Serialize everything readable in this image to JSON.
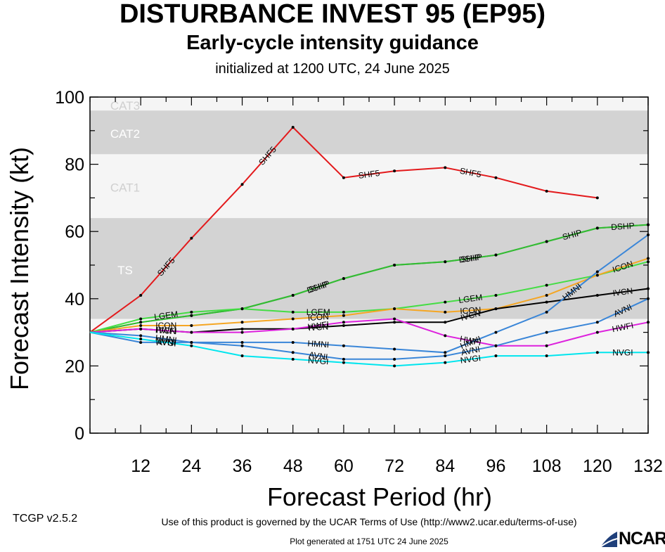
{
  "titles": {
    "main": "DISTURBANCE INVEST 95 (EP95)",
    "sub": "Early-cycle intensity guidance",
    "init": "initialized at 1200 UTC, 24 June 2025"
  },
  "footer": {
    "version": "TCGP v2.5.2",
    "terms": "Use of this product is governed by the UCAR Terms of Use (http://www2.ucar.edu/terms-of-use)",
    "generated": "Plot generated at 1751 UTC   24 June 2025",
    "logo": "NCAR"
  },
  "chart_data": {
    "type": "line",
    "xlabel": "Forecast Period (hr)",
    "ylabel": "Forecast Intensity (kt)",
    "xlim": [
      0,
      132
    ],
    "ylim": [
      0,
      100
    ],
    "xticks": [
      12,
      24,
      36,
      48,
      60,
      72,
      84,
      96,
      108,
      120,
      132
    ],
    "yticks": [
      0,
      20,
      40,
      60,
      80,
      100
    ],
    "bands": [
      {
        "label": "TS",
        "from": 34,
        "to": 64,
        "color": "#d3d3d3"
      },
      {
        "label": "CAT1",
        "from": 64,
        "to": 83,
        "color": "#f5f5f5"
      },
      {
        "label": "CAT2",
        "from": 83,
        "to": 96,
        "color": "#d3d3d3"
      },
      {
        "label": "CAT3",
        "from": 96,
        "to": 100,
        "color": "#f5f5f5"
      }
    ],
    "series": [
      {
        "name": "SHF5",
        "color": "#e31a1c",
        "labelAt": [
          24,
          48,
          72,
          96
        ],
        "points": [
          [
            0,
            30
          ],
          [
            12,
            41
          ],
          [
            24,
            58
          ],
          [
            36,
            74
          ],
          [
            48,
            91
          ],
          [
            60,
            76
          ],
          [
            72,
            78
          ],
          [
            84,
            79
          ],
          [
            96,
            76
          ],
          [
            108,
            72
          ],
          [
            120,
            70
          ]
        ]
      },
      {
        "name": "SHIP",
        "color": "#33bb33",
        "labelAt": [
          60,
          96,
          120
        ],
        "points": [
          [
            0,
            30
          ],
          [
            12,
            33
          ],
          [
            24,
            35
          ],
          [
            36,
            37
          ],
          [
            48,
            41
          ],
          [
            60,
            46
          ],
          [
            72,
            50
          ],
          [
            84,
            51
          ],
          [
            96,
            53
          ],
          [
            108,
            57
          ],
          [
            120,
            61
          ],
          [
            132,
            62
          ]
        ]
      },
      {
        "name": "DSHP",
        "color": "#33bb33",
        "labelAt": [
          60,
          96,
          132
        ],
        "points": [
          [
            0,
            30
          ],
          [
            12,
            33
          ],
          [
            24,
            35
          ],
          [
            36,
            37
          ],
          [
            48,
            41
          ],
          [
            60,
            46
          ],
          [
            72,
            50
          ],
          [
            84,
            51
          ],
          [
            96,
            53
          ],
          [
            108,
            57
          ],
          [
            120,
            61
          ],
          [
            132,
            62
          ]
        ]
      },
      {
        "name": "LGEM",
        "color": "#44dd44",
        "labelAt": [
          24,
          60,
          96
        ],
        "points": [
          [
            0,
            30
          ],
          [
            12,
            34
          ],
          [
            24,
            36
          ],
          [
            36,
            37
          ],
          [
            48,
            36
          ],
          [
            60,
            36
          ],
          [
            72,
            37
          ],
          [
            84,
            39
          ],
          [
            96,
            41
          ],
          [
            108,
            44
          ],
          [
            120,
            47
          ],
          [
            132,
            51
          ]
        ]
      },
      {
        "name": "ICON",
        "color": "#f5a623",
        "labelAt": [
          24,
          60,
          96,
          132
        ],
        "points": [
          [
            0,
            30
          ],
          [
            12,
            32
          ],
          [
            24,
            32
          ],
          [
            36,
            33
          ],
          [
            48,
            34
          ],
          [
            60,
            35
          ],
          [
            72,
            37
          ],
          [
            84,
            36
          ],
          [
            96,
            37
          ],
          [
            108,
            41
          ],
          [
            120,
            47
          ],
          [
            132,
            52
          ]
        ]
      },
      {
        "name": "IVCN",
        "color": "#000000",
        "labelAt": [
          24,
          60,
          96,
          132
        ],
        "points": [
          [
            0,
            30
          ],
          [
            12,
            31
          ],
          [
            24,
            30
          ],
          [
            36,
            31
          ],
          [
            48,
            31
          ],
          [
            60,
            32
          ],
          [
            72,
            33
          ],
          [
            84,
            33
          ],
          [
            96,
            37
          ],
          [
            108,
            39
          ],
          [
            120,
            41
          ],
          [
            132,
            43
          ]
        ]
      },
      {
        "name": "HWFI",
        "color": "#dd22dd",
        "labelAt": [
          24,
          60,
          96,
          132
        ],
        "points": [
          [
            0,
            30
          ],
          [
            12,
            31
          ],
          [
            24,
            30
          ],
          [
            36,
            30
          ],
          [
            48,
            31
          ],
          [
            60,
            33
          ],
          [
            72,
            34
          ],
          [
            84,
            29
          ],
          [
            96,
            26
          ],
          [
            108,
            26
          ],
          [
            120,
            30
          ],
          [
            132,
            33
          ]
        ]
      },
      {
        "name": "HMNI",
        "color": "#3a86d8",
        "labelAt": [
          24,
          60,
          96,
          120
        ],
        "points": [
          [
            0,
            30
          ],
          [
            12,
            29
          ],
          [
            24,
            27
          ],
          [
            36,
            27
          ],
          [
            48,
            27
          ],
          [
            60,
            26
          ],
          [
            72,
            25
          ],
          [
            84,
            24
          ],
          [
            96,
            30
          ],
          [
            108,
            36
          ],
          [
            120,
            48
          ],
          [
            132,
            59
          ]
        ]
      },
      {
        "name": "AVNI",
        "color": "#3a86d8",
        "labelAt": [
          24,
          60,
          96,
          132
        ],
        "points": [
          [
            0,
            30
          ],
          [
            12,
            27
          ],
          [
            24,
            27
          ],
          [
            36,
            26
          ],
          [
            48,
            24
          ],
          [
            60,
            22
          ],
          [
            72,
            22
          ],
          [
            84,
            23
          ],
          [
            96,
            26
          ],
          [
            108,
            30
          ],
          [
            120,
            33
          ],
          [
            132,
            40
          ]
        ]
      },
      {
        "name": "NVGI",
        "color": "#00e5ee",
        "labelAt": [
          24,
          60,
          96,
          132
        ],
        "points": [
          [
            0,
            30
          ],
          [
            12,
            28
          ],
          [
            24,
            26
          ],
          [
            36,
            23
          ],
          [
            48,
            22
          ],
          [
            60,
            21
          ],
          [
            72,
            20
          ],
          [
            84,
            21
          ],
          [
            96,
            23
          ],
          [
            108,
            23
          ],
          [
            120,
            24
          ],
          [
            132,
            24
          ]
        ]
      }
    ]
  }
}
